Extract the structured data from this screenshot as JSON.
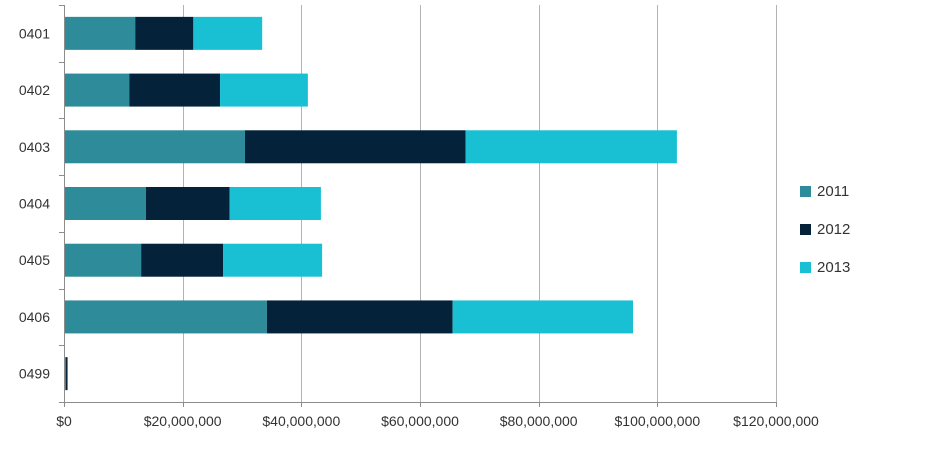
{
  "chart_data": {
    "type": "bar",
    "orientation": "horizontal",
    "stacked": true,
    "categories": [
      "0401",
      "0402",
      "0403",
      "0404",
      "0405",
      "0406",
      "0499"
    ],
    "series": [
      {
        "name": "2011",
        "color": "#2e8b9a",
        "values": [
          12000000,
          11000000,
          30500000,
          13800000,
          13000000,
          34200000,
          300000
        ]
      },
      {
        "name": "2012",
        "color": "#04233a",
        "values": [
          9800000,
          15300000,
          37200000,
          14100000,
          13800000,
          31300000,
          300000
        ]
      },
      {
        "name": "2013",
        "color": "#19c0d3",
        "values": [
          11600000,
          14800000,
          35600000,
          15400000,
          16700000,
          30400000,
          0
        ]
      }
    ],
    "xlim": [
      0,
      120000000
    ],
    "x_ticks": [
      0,
      20000000,
      40000000,
      60000000,
      80000000,
      100000000,
      120000000
    ],
    "x_tick_labels": [
      "$0",
      "$20,000,000",
      "$40,000,000",
      "$60,000,000",
      "$80,000,000",
      "$100,000,000",
      "$120,000,000"
    ],
    "grid": "vertical",
    "legend_position": "right",
    "title": "",
    "xlabel": "",
    "ylabel": ""
  }
}
